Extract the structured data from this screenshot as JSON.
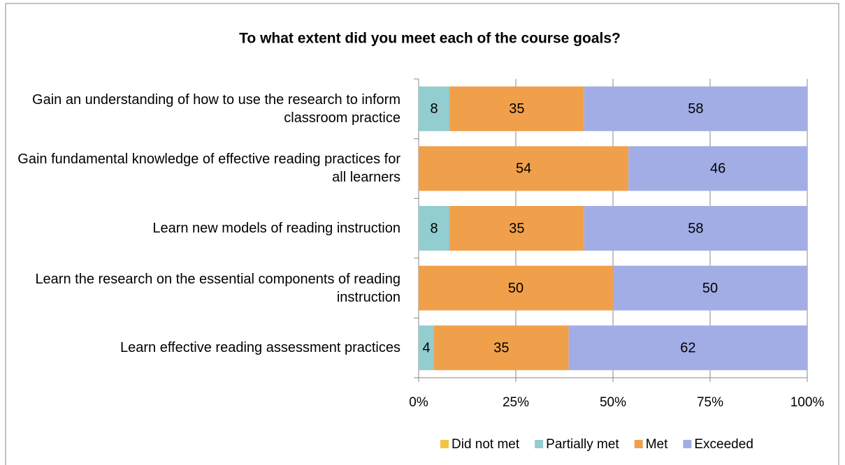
{
  "chart_data": {
    "type": "bar",
    "orientation": "horizontal",
    "stacked": "percent",
    "title": "To what extent did you meet each of the course goals?",
    "categories": [
      "Gain an understanding of how to use the research to inform classroom practice",
      "Gain fundamental knowledge of effective reading practices for all learners",
      "Learn new models of reading instruction",
      "Learn the research on the essential components of reading instruction",
      "Learn effective reading assessment practices"
    ],
    "series": [
      {
        "name": "Did not met",
        "color": "#f5c342",
        "values": [
          0,
          0,
          0,
          0,
          0
        ]
      },
      {
        "name": "Partially met",
        "color": "#92cdd0",
        "values": [
          8,
          0,
          8,
          0,
          4
        ]
      },
      {
        "name": "Met",
        "color": "#f0a04b",
        "values": [
          35,
          54,
          35,
          50,
          35
        ]
      },
      {
        "name": "Exceeded",
        "color": "#a2ade6",
        "values": [
          58,
          46,
          58,
          50,
          62
        ]
      }
    ],
    "xlim": [
      0,
      100
    ],
    "xticks": [
      {
        "value": 0,
        "label": "0%"
      },
      {
        "value": 25,
        "label": "25%"
      },
      {
        "value": 50,
        "label": "50%"
      },
      {
        "value": 75,
        "label": "75%"
      },
      {
        "value": 100,
        "label": "100%"
      }
    ],
    "grid": true,
    "legend": "bottom"
  }
}
